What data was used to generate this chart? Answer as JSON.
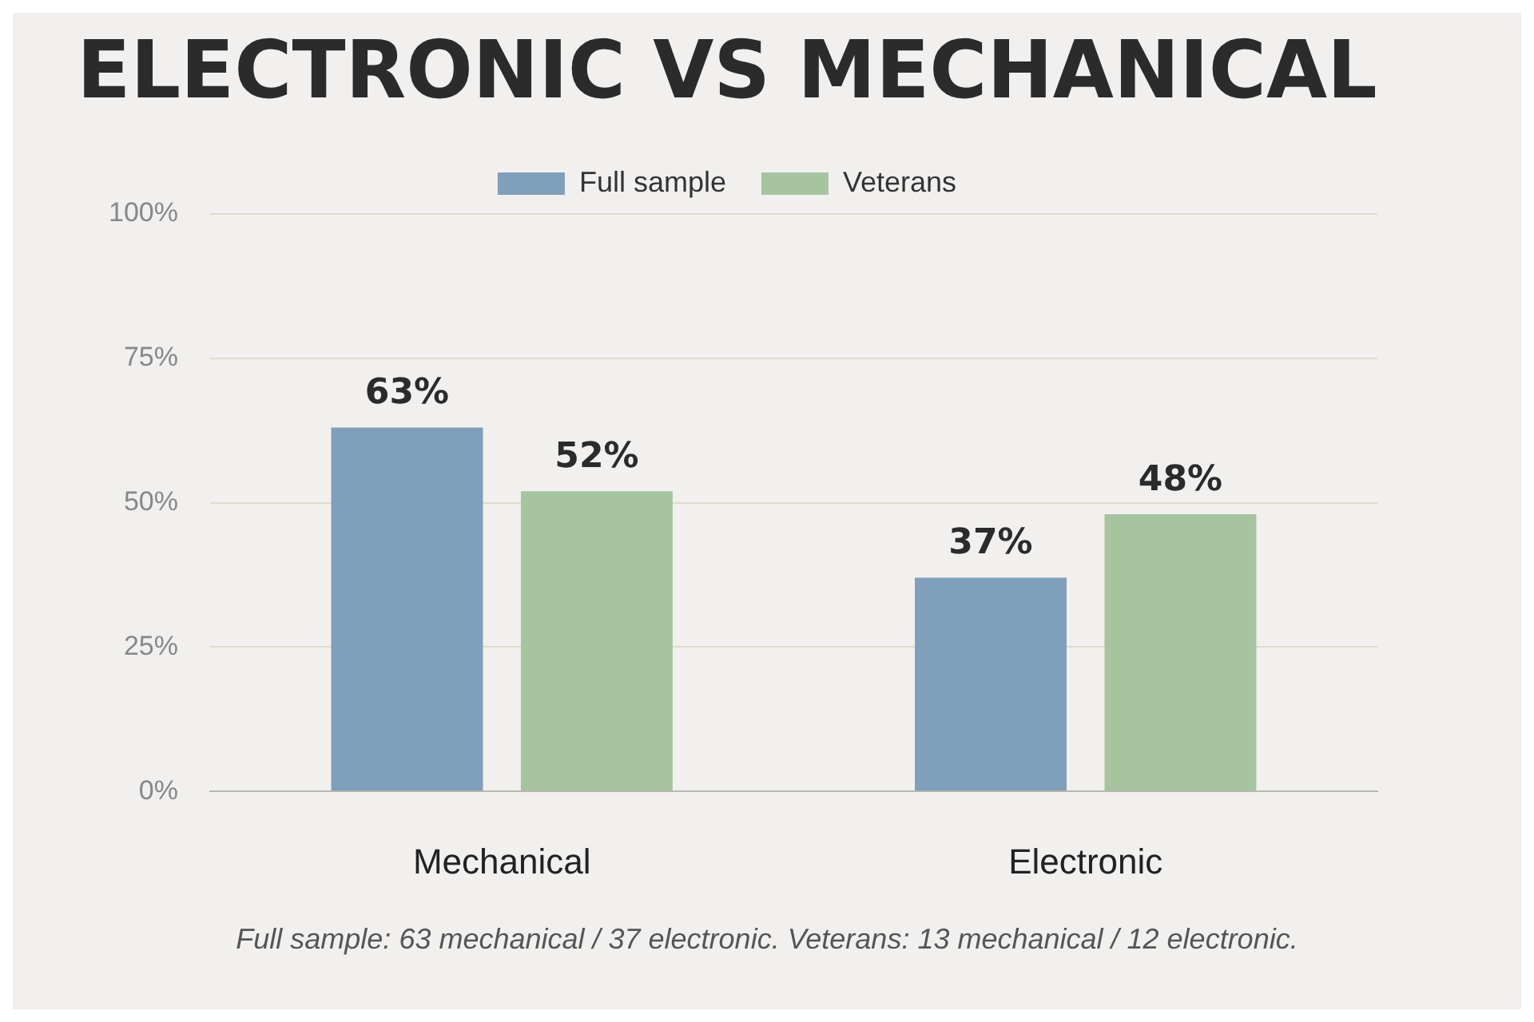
{
  "chart_data": {
    "type": "bar",
    "title": "ELECTRONIC VS MECHANICAL",
    "categories": [
      "Mechanical",
      "Electronic"
    ],
    "series": [
      {
        "name": "Full sample",
        "color": "#7f9fba",
        "values": [
          63,
          37
        ],
        "value_labels": [
          "63%",
          "37%"
        ]
      },
      {
        "name": "Veterans",
        "color": "#a5c49f",
        "values": [
          52,
          48
        ],
        "value_labels": [
          "52%",
          "48%"
        ]
      }
    ],
    "ylim": [
      0,
      100
    ],
    "yticks": [
      {
        "value": 0,
        "label": "0%"
      },
      {
        "value": 25,
        "label": "25%"
      },
      {
        "value": 50,
        "label": "50%"
      },
      {
        "value": 75,
        "label": "75%"
      },
      {
        "value": 100,
        "label": "100%"
      }
    ],
    "grid": "y",
    "legend": "top",
    "annotations": [
      "Full sample: 63 mechanical / 37 electronic. Veterans: 13 mechanical / 12 electronic."
    ]
  }
}
